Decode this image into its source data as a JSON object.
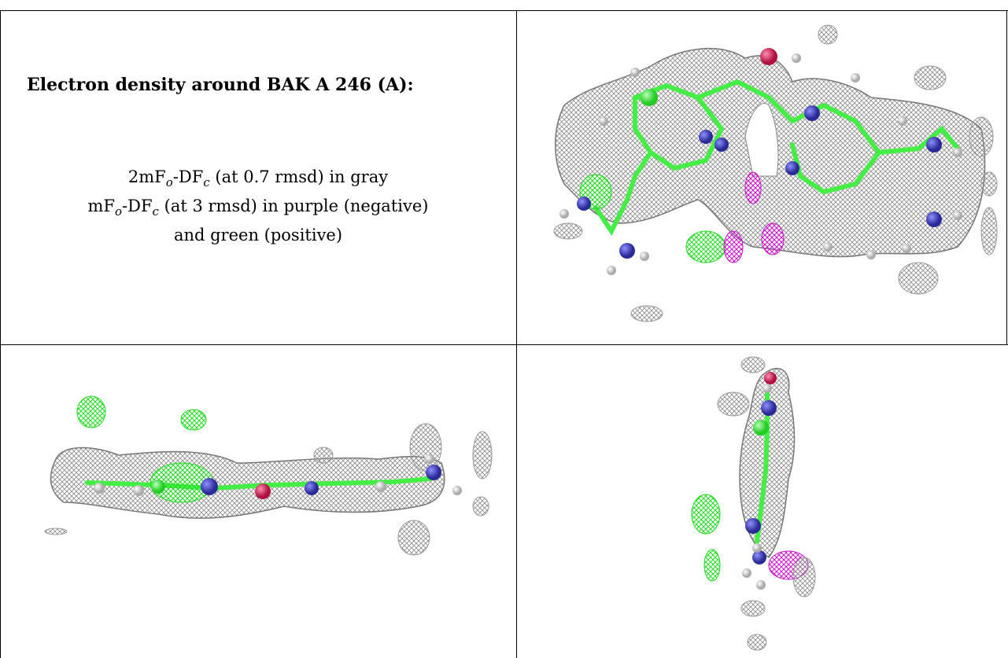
{
  "caption": {
    "title": "Electron density around BAK A 246 (A):",
    "line1_a": "2mF",
    "line1_sub1": "o",
    "line1_b": "-DF",
    "line1_sub2": "c",
    "line1_c": " (at 0.7 rmsd) in gray",
    "line2_a": "mF",
    "line2_sub1": "o",
    "line2_b": "-DF",
    "line2_sub2": "c",
    "line2_c": " (at 3 rmsd) in purple (negative)",
    "line3": "and green (positive)"
  },
  "colors": {
    "map_gray": "#8f8f8f",
    "map_green": "#22dd22",
    "map_purple": "#cc11cc",
    "carbon": "#44ee44",
    "nitrogen": "#3a3ab8",
    "oxygen": "#d81e50",
    "hydrogen": "#eeeeee"
  },
  "views": [
    {
      "name": "top-view",
      "icon": "molecule-top-view-image"
    },
    {
      "name": "side-view",
      "icon": "molecule-side-view-image"
    },
    {
      "name": "end-view",
      "icon": "molecule-end-view-image"
    }
  ]
}
